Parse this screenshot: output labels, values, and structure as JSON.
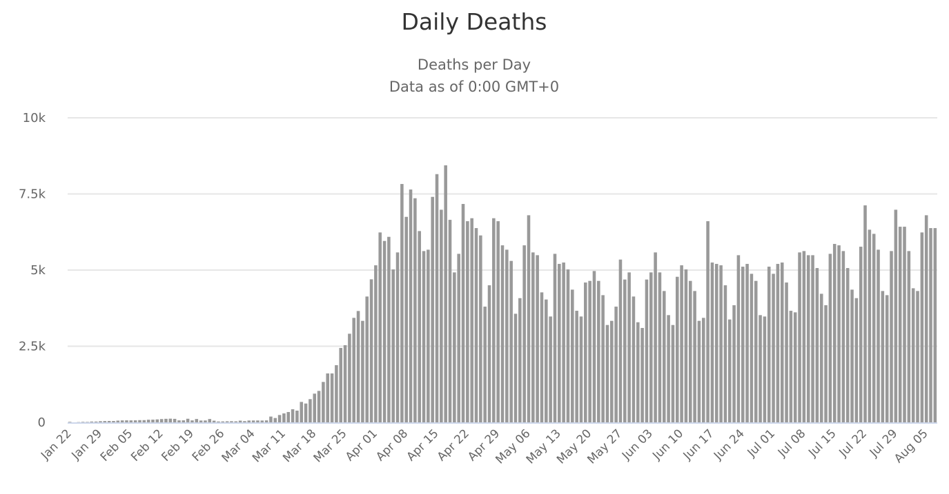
{
  "chart_data": {
    "type": "bar",
    "title": "Daily Deaths",
    "subtitle_lines": [
      "Deaths per Day",
      "Data as of 0:00 GMT+0"
    ],
    "xlabel": "",
    "ylabel": "",
    "ylim": [
      0,
      10000
    ],
    "grid": true,
    "legend": "none",
    "y_ticks": [
      0,
      2500,
      5000,
      7500,
      10000
    ],
    "y_tick_labels": [
      "0",
      "2.5k",
      "5k",
      "7.5k",
      "10k"
    ],
    "categories_start": "Jan 22",
    "category_interval_days": 1,
    "x_tick_every": 7,
    "x_tick_labels": [
      "Jan 22",
      "Jan 29",
      "Feb 05",
      "Feb 12",
      "Feb 19",
      "Feb 26",
      "Mar 04",
      "Mar 11",
      "Mar 18",
      "Mar 25",
      "Apr 01",
      "Apr 08",
      "Apr 15",
      "Apr 22",
      "Apr 29",
      "May 06",
      "May 13",
      "May 20",
      "May 27",
      "Jun 03",
      "Jun 10",
      "Jun 17",
      "Jun 24",
      "Jul 01",
      "Jul 08",
      "Jul 15",
      "Jul 22",
      "Jul 29",
      "Aug 05"
    ],
    "series": [
      {
        "name": "Daily Deaths",
        "color": "#999999",
        "values": [
          17,
          0,
          8,
          16,
          14,
          26,
          26,
          38,
          43,
          46,
          45,
          57,
          64,
          66,
          65,
          66,
          73,
          73,
          86,
          89,
          97,
          108,
          116,
          121,
          115,
          65,
          66,
          118,
          64,
          110,
          60,
          62,
          110,
          55,
          28,
          30,
          35,
          38,
          34,
          56,
          40,
          60,
          62,
          62,
          60,
          65,
          190,
          143,
          241,
          294,
          339,
          430,
          385,
          671,
          618,
          762,
          943,
          1033,
          1327,
          1606,
          1606,
          1877,
          2443,
          2533,
          2910,
          3431,
          3657,
          3333,
          4132,
          4697,
          5157,
          6236,
          5957,
          6092,
          5022,
          5580,
          7827,
          6748,
          7646,
          7359,
          6281,
          5625,
          5670,
          7404,
          8151,
          6982,
          8440,
          6650,
          4924,
          5534,
          7171,
          6605,
          6703,
          6379,
          6138,
          3800,
          4501,
          6703,
          6605,
          5813,
          5670,
          5301,
          3566,
          4079,
          5813,
          6801,
          5580,
          5489,
          4268,
          4034,
          3476,
          5534,
          5203,
          5248,
          5022,
          4358,
          3664,
          3476,
          4592,
          4645,
          4969,
          4645,
          4177,
          3197,
          3333,
          3800,
          5346,
          4690,
          4924,
          4132,
          3287,
          3099,
          4690,
          4924,
          5580,
          4924,
          4313,
          3521,
          3197,
          4780,
          5157,
          5022,
          4645,
          4313,
          3333,
          3431,
          6605,
          5248,
          5203,
          5157,
          4501,
          3378,
          3846,
          5489,
          5112,
          5203,
          4878,
          4645,
          3521,
          3476,
          5112,
          4878,
          5203,
          5248,
          4592,
          3664,
          3612,
          5580,
          5625,
          5489,
          5489,
          5067,
          4222,
          3846,
          5534,
          5859,
          5813,
          5625,
          5067,
          4358,
          4079,
          5768,
          7125,
          6326,
          6190,
          5670,
          4313,
          4177,
          5625,
          6982,
          6424,
          6424,
          5625,
          4403,
          4313,
          6236,
          6801,
          6379,
          6379
        ]
      }
    ],
    "baseline_color": "#ccd6eb",
    "grid_color": "#e6e6e6"
  }
}
